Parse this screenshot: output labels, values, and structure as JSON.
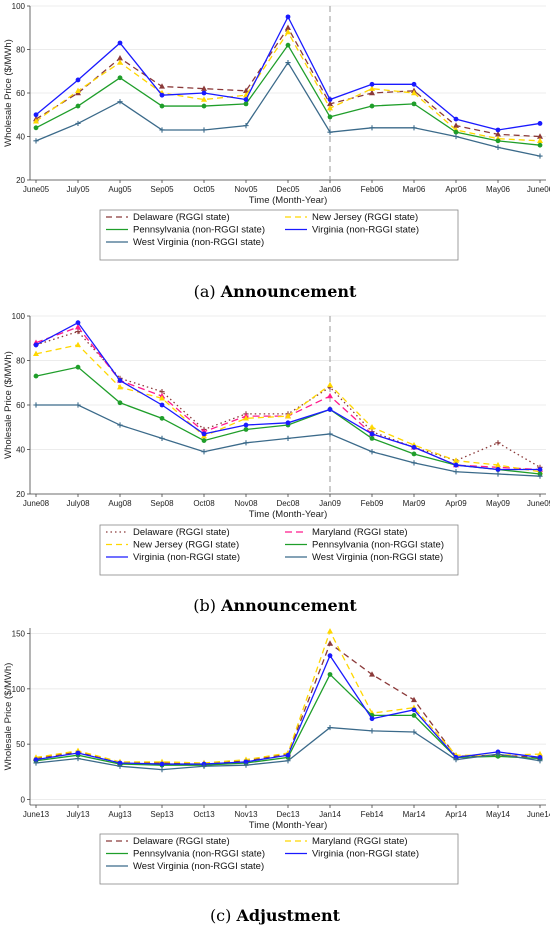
{
  "captions": [
    {
      "letter": "(a)",
      "text": "Announcement"
    },
    {
      "letter": "(b)",
      "text": "Announcement"
    },
    {
      "letter": "(c)",
      "text": "Adjustment"
    }
  ],
  "chart_data": [
    {
      "type": "line",
      "xlabel": "Time (Month-Year)",
      "ylabel": "Wholesale Price ($/MWh)",
      "categories": [
        "June05",
        "July05",
        "Aug05",
        "Sep05",
        "Oct05",
        "Nov05",
        "Dec05",
        "Jan06",
        "Feb06",
        "Mar06",
        "Apr06",
        "May06",
        "June06"
      ],
      "ylim": [
        20,
        100
      ],
      "yticks": [
        20,
        40,
        60,
        80,
        100
      ],
      "vline_at": "Jan06",
      "legend": "bottom",
      "series": [
        {
          "name": "Delaware (RGGI state)",
          "color": "#8b3a3a",
          "dash": "6,4",
          "marker": "triangle",
          "values": [
            48,
            60,
            76,
            63,
            62,
            61,
            90,
            55,
            60,
            61,
            45,
            41,
            40
          ]
        },
        {
          "name": "New Jersey (RGGI state)",
          "color": "#ffd700",
          "dash": "6,4",
          "marker": "triangle",
          "values": [
            47,
            61,
            74,
            60,
            57,
            59,
            88,
            53,
            62,
            60,
            43,
            39,
            38
          ]
        },
        {
          "name": "Pennsylvania (non-RGGI state)",
          "color": "#1f9e2a",
          "dash": "",
          "marker": "circle",
          "values": [
            44,
            54,
            67,
            54,
            54,
            55,
            82,
            49,
            54,
            55,
            42,
            38,
            36
          ]
        },
        {
          "name": "Virginia (non-RGGI state)",
          "color": "#1a1aff",
          "dash": "",
          "marker": "circle",
          "values": [
            50,
            66,
            83,
            59,
            60,
            57,
            95,
            57,
            64,
            64,
            48,
            43,
            46
          ]
        },
        {
          "name": "West Virginia (non-RGGI state)",
          "color": "#3b6a8a",
          "dash": "",
          "marker": "plus",
          "values": [
            38,
            46,
            56,
            43,
            43,
            45,
            74,
            42,
            44,
            44,
            40,
            35,
            31
          ]
        }
      ]
    },
    {
      "type": "line",
      "xlabel": "Time (Month-Year)",
      "ylabel": "Wholesale Price ($/MWh)",
      "categories": [
        "June08",
        "July08",
        "Aug08",
        "Sep08",
        "Oct08",
        "Nov08",
        "Dec08",
        "Jan09",
        "Feb09",
        "Mar09",
        "Apr09",
        "May09",
        "June09"
      ],
      "ylim": [
        20,
        100
      ],
      "yticks": [
        20,
        40,
        60,
        80,
        100
      ],
      "vline_at": "Jan09",
      "legend": "bottom",
      "series": [
        {
          "name": "Delaware (RGGI state)",
          "color": "#8b3a3a",
          "dash": "1.5,3",
          "marker": "plus",
          "values": [
            87,
            93,
            72,
            66,
            49,
            56,
            56,
            68,
            48,
            41,
            35,
            43,
            32
          ]
        },
        {
          "name": "Maryland (RGGI state)",
          "color": "#ff1a8c",
          "dash": "7,4",
          "marker": "triangle",
          "values": [
            88,
            95,
            71,
            64,
            48,
            55,
            55,
            64,
            47,
            41,
            33,
            32,
            31
          ]
        },
        {
          "name": "New Jersey (RGGI state)",
          "color": "#ffd700",
          "dash": "6,4",
          "marker": "triangle",
          "values": [
            83,
            87,
            68,
            63,
            46,
            54,
            55,
            69,
            50,
            42,
            35,
            33,
            30
          ]
        },
        {
          "name": "Pennsylvania (non-RGGI state)",
          "color": "#1f9e2a",
          "dash": "",
          "marker": "circle",
          "values": [
            73,
            77,
            61,
            54,
            44,
            49,
            51,
            58,
            45,
            38,
            33,
            31,
            29
          ]
        },
        {
          "name": "Virginia (non-RGGI state)",
          "color": "#1a1aff",
          "dash": "",
          "marker": "circle",
          "values": [
            87,
            97,
            71,
            60,
            47,
            51,
            52,
            58,
            47,
            41,
            33,
            31,
            31
          ]
        },
        {
          "name": "West Virginia (non-RGGI state)",
          "color": "#3b6a8a",
          "dash": "",
          "marker": "plus",
          "values": [
            60,
            60,
            51,
            45,
            39,
            43,
            45,
            47,
            39,
            34,
            30,
            29,
            28
          ]
        }
      ]
    },
    {
      "type": "line",
      "xlabel": "Time (Month-Year)",
      "ylabel": "Wholesale Price ($/MWh)",
      "categories": [
        "June13",
        "July13",
        "Aug13",
        "Sep13",
        "Oct13",
        "Nov13",
        "Dec13",
        "Jan14",
        "Feb14",
        "Mar14",
        "Apr14",
        "May14",
        "June14"
      ],
      "ylim": [
        -5,
        155
      ],
      "yticks": [
        0,
        50,
        100,
        150
      ],
      "vline_at": null,
      "legend": "bottom",
      "series": [
        {
          "name": "Delaware (RGGI state)",
          "color": "#8b3a3a",
          "dash": "6,4",
          "marker": "triangle",
          "values": [
            37,
            43,
            33,
            33,
            32,
            35,
            41,
            141,
            113,
            90,
            39,
            40,
            38
          ]
        },
        {
          "name": "Maryland (RGGI state)",
          "color": "#ffd700",
          "dash": "6,4",
          "marker": "triangle",
          "values": [
            38,
            44,
            34,
            34,
            33,
            36,
            42,
            152,
            78,
            83,
            40,
            40,
            41
          ]
        },
        {
          "name": "Pennsylvania (non-RGGI state)",
          "color": "#1f9e2a",
          "dash": "",
          "marker": "circle",
          "values": [
            35,
            40,
            32,
            31,
            31,
            33,
            38,
            113,
            76,
            76,
            38,
            39,
            37
          ]
        },
        {
          "name": "Virginia (non-RGGI state)",
          "color": "#1a1aff",
          "dash": "",
          "marker": "circle",
          "values": [
            36,
            42,
            33,
            32,
            32,
            34,
            40,
            130,
            73,
            81,
            38,
            43,
            38
          ]
        },
        {
          "name": "West Virginia (non-RGGI state)",
          "color": "#3b6a8a",
          "dash": "",
          "marker": "plus",
          "values": [
            33,
            37,
            30,
            27,
            30,
            31,
            35,
            65,
            62,
            61,
            36,
            41,
            35
          ]
        }
      ]
    }
  ]
}
